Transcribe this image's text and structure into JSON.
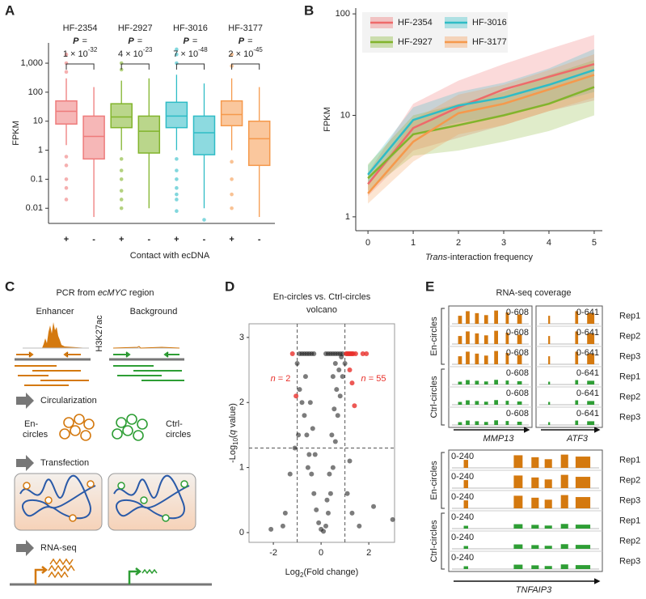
{
  "panel_labels": [
    "A",
    "B",
    "C",
    "D",
    "E"
  ],
  "chart_data": [
    {
      "type": "box",
      "y_label": "FPKM",
      "x_label": "Contact with ecDNA",
      "log_y": true,
      "ylim": [
        0.003,
        5000
      ],
      "yticks": [
        0.01,
        0.1,
        1,
        10,
        100,
        {
          "value": 1000,
          "label": "1,000"
        }
      ],
      "categories": [
        "+",
        "-",
        "+",
        "-",
        "+",
        "-",
        "+",
        "-"
      ],
      "colors": [
        "#ee7b7b",
        "#ee7b7b",
        "#82b42c",
        "#82b42c",
        "#2fbcc6",
        "#2fbcc6",
        "#f5994c",
        "#f5994c"
      ],
      "boxes": [
        [
          1.5,
          8,
          22,
          50,
          300
        ],
        [
          0.005,
          0.5,
          3,
          15,
          150
        ],
        [
          1,
          6,
          14,
          40,
          250
        ],
        [
          0.01,
          0.8,
          4.5,
          15,
          300
        ],
        [
          1,
          6,
          15,
          45,
          400
        ],
        [
          0.01,
          0.7,
          4,
          15,
          200
        ],
        [
          1,
          7,
          17,
          50,
          300
        ],
        [
          0.005,
          0.3,
          2.5,
          10,
          150
        ]
      ],
      "outliers": [
        [
          500,
          1000,
          2000,
          0.6,
          0.3,
          0.1,
          0.05,
          0.02
        ],
        [],
        [
          600,
          1000,
          0.5,
          0.2,
          0.1,
          0.04,
          0.02,
          0.01
        ],
        [],
        [
          1000,
          2000,
          3000,
          0.5,
          0.2,
          0.1,
          0.05,
          0.03,
          0.02,
          0.008
        ],
        [
          0.004
        ],
        [
          800,
          2000,
          0.4,
          0.1,
          0.03,
          0.01
        ],
        []
      ],
      "groups": [
        {
          "name": "HF-2354",
          "p_label": "P",
          "p_eq": "=",
          "p_mantissa": "1 × 10",
          "p_exponent": "-32"
        },
        {
          "name": "HF-2927",
          "p_label": "P",
          "p_eq": "=",
          "p_mantissa": "4 × 10",
          "p_exponent": "-23"
        },
        {
          "name": "HF-3016",
          "p_label": "P",
          "p_eq": "=",
          "p_mantissa": "7 × 10",
          "p_exponent": "-48"
        },
        {
          "name": "HF-3177",
          "p_label": "P",
          "p_eq": "=",
          "p_mantissa": "2 × 10",
          "p_exponent": "-45"
        }
      ]
    },
    {
      "type": "line",
      "y_label": "FPKM",
      "x_label_italic": "Trans",
      "x_label_rest": "-interaction frequency",
      "log_y": true,
      "legend": "top-left",
      "x": [
        0,
        1,
        2,
        3,
        4,
        5
      ],
      "xlim": [
        -0.27,
        5.18
      ],
      "xticks": [
        0,
        1,
        2,
        3,
        4,
        5
      ],
      "ylim": [
        0.73,
        114
      ],
      "yticks": [
        1,
        10,
        100
      ],
      "series": [
        {
          "name": "HF-2354",
          "color": "#ee6a6a",
          "values": [
            2.1,
            7.5,
            12,
            18,
            24,
            32
          ],
          "lower": [
            1.6,
            4.5,
            6,
            8,
            11,
            14
          ],
          "upper": [
            2.7,
            13,
            22,
            32,
            45,
            62
          ]
        },
        {
          "name": "HF-3016",
          "color": "#2fbcc6",
          "values": [
            2.6,
            9,
            12.5,
            15,
            20,
            28
          ],
          "lower": [
            2.1,
            6.5,
            8.5,
            10,
            13,
            17
          ],
          "upper": [
            3.2,
            12,
            17,
            21,
            29,
            45
          ]
        },
        {
          "name": "HF-2927",
          "color": "#82b42c",
          "values": [
            2.4,
            6.5,
            8,
            10,
            13,
            19
          ],
          "lower": [
            1.8,
            4,
            4.5,
            5.5,
            7,
            10
          ],
          "upper": [
            3.3,
            10,
            13,
            17,
            25,
            35
          ]
        },
        {
          "name": "HF-3177",
          "color": "#f5994c",
          "values": [
            1.7,
            5.5,
            10.5,
            13,
            18,
            25
          ],
          "lower": [
            1.35,
            3.5,
            6.5,
            8,
            11,
            15
          ],
          "upper": [
            2.1,
            9,
            16,
            20,
            28,
            40
          ]
        }
      ]
    },
    {
      "type": "scatter",
      "title": "En-circles vs. Ctrl-circles",
      "subtitle": "volcano",
      "y_label": {
        "a": "-Log",
        "sub": "10",
        "b": "(",
        "italic": "q",
        "c": " value)"
      },
      "x_label": {
        "a": "Log",
        "sub": "2",
        "b": "(Fold change)"
      },
      "xlim": [
        -3.02,
        3.08
      ],
      "xticks": [
        -2,
        0,
        2
      ],
      "ylim": [
        -0.15,
        3.21
      ],
      "yticks": [
        0,
        1,
        2,
        3
      ],
      "threshold_x": [
        -1,
        1
      ],
      "threshold_y": 1.3,
      "color": "#111111",
      "highlight_color": "#e8302a",
      "n_left": {
        "n": "n",
        "rest": " = 2"
      },
      "n_right": {
        "n": "n",
        "rest": " = 55"
      },
      "x": [
        -1.2,
        -0.9,
        -0.8,
        -0.7,
        -0.6,
        -0.5,
        -0.4,
        -0.3,
        0.2,
        0.3,
        0.4,
        0.5,
        0.6,
        0.7,
        0.8,
        0.9,
        1.05,
        1.1,
        1.15,
        1.2,
        1.25,
        1.3,
        1.35,
        1.45,
        1.75,
        1.9,
        -0.9,
        -0.8,
        -0.7,
        -0.6,
        -0.5,
        -0.4,
        -0.3,
        -0.2,
        -0.1,
        0,
        0.1,
        0.2,
        0.3,
        0.4,
        0.5,
        0.6,
        0.7,
        0.8,
        0.9,
        0.5,
        0.6,
        -1.5,
        -1.3,
        -1.1,
        -1.6,
        -2.1,
        1.1,
        1.3,
        1.6,
        2.2,
        3.0,
        1.2,
        -0.95,
        -1.0,
        1.0,
        1.2,
        1.3,
        1.4,
        -1.05,
        -0.65,
        -0.45,
        -0.25,
        0.35,
        0.55,
        0.75,
        -0.55,
        0.45,
        0.65,
        -0.35,
        0.25,
        0.85
      ],
      "y": [
        2.75,
        2.75,
        2.75,
        2.75,
        2.75,
        2.75,
        2.75,
        2.75,
        2.75,
        2.75,
        2.75,
        2.75,
        2.75,
        2.75,
        2.75,
        2.75,
        2.75,
        2.75,
        2.75,
        2.75,
        2.75,
        2.75,
        2.75,
        2.75,
        2.75,
        2.75,
        2.2,
        2.0,
        1.8,
        1.5,
        1.2,
        0.9,
        0.6,
        0.35,
        0.15,
        0.05,
        0.02,
        0.1,
        0.3,
        0.6,
        1.0,
        1.4,
        1.8,
        2.1,
        2.4,
        2.4,
        2.6,
        0.3,
        0.9,
        1.3,
        0.1,
        0.05,
        0.6,
        0.3,
        0.1,
        0.4,
        0.2,
        1.1,
        1.5,
        2.6,
        2.6,
        2.5,
        2.3,
        1.95,
        2.1,
        2.4,
        2.0,
        1.2,
        0.9,
        1.9,
        2.5,
        1.0,
        1.5,
        2.2,
        1.6,
        0.5,
        2.7
      ]
    }
  ],
  "diagram": {
    "title_prefix": "PCR from ",
    "title_italic": "ecMYC",
    "title_suffix": " region",
    "enhancer": "Enhancer",
    "background": "Background",
    "mark": "H3K27ac",
    "steps": [
      "Circularization",
      "Transfection",
      "RNA-seq"
    ],
    "en": [
      "En-",
      "circles"
    ],
    "ctrl": [
      "Ctrl-",
      "circles"
    ]
  },
  "coverage": {
    "title": "RNA-seq coverage",
    "groups": [
      "En-circles",
      "Ctrl-circles"
    ],
    "reps": [
      "Rep1",
      "Rep2",
      "Rep3"
    ],
    "genes_top": [
      {
        "name": "MMP13",
        "range": "0-608"
      },
      {
        "name": "ATF3",
        "range": "0-641"
      }
    ],
    "gene_bottom": {
      "name": "TNFAIP3",
      "range": "0-240"
    },
    "colors": [
      "#d4790f",
      "#2e9e35"
    ]
  }
}
